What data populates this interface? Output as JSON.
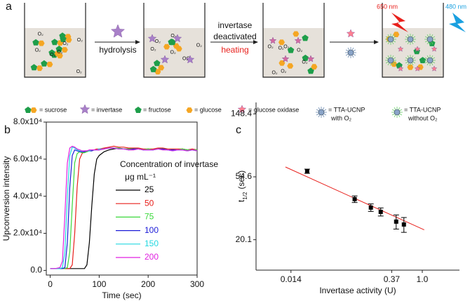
{
  "schematic": {
    "panel": "a",
    "o2": "O₂",
    "step1": "hydrolysis",
    "step2": [
      "invertase",
      "deactivated"
    ],
    "step2b": "heating",
    "red_light": "650 nm",
    "blue_light": "480 nm",
    "legend": [
      "= sucrose",
      "= invertase",
      "= fructose",
      "= glucose",
      "= glucose oxidase"
    ],
    "ucnp_with": [
      "= TTA-UCNP",
      "with O₂"
    ],
    "ucnp_without": [
      "= TTA-UCNP",
      "without O₂"
    ]
  },
  "chart_data": [
    {
      "type": "line",
      "panel": "b",
      "xlabel": "Time (sec)",
      "ylabel": "Upconversion intensity",
      "legend_title": [
        "Concentration of invertase",
        "μg mL⁻¹"
      ],
      "x": [
        0,
        10,
        20,
        25,
        30,
        35,
        40,
        45,
        50,
        55,
        60,
        65,
        70,
        75,
        80,
        85,
        90,
        95,
        100,
        110,
        120,
        130,
        140,
        150,
        160,
        170,
        180,
        190,
        200,
        210,
        220,
        230,
        240,
        250,
        260,
        270,
        280,
        290,
        300
      ],
      "xlim": [
        -8,
        300
      ],
      "xticks": [
        0,
        100,
        200,
        300
      ],
      "ylim": [
        -2500,
        80000
      ],
      "yticks": [
        {
          "value": 0,
          "label": "0.0"
        },
        {
          "value": 20000,
          "label": "2.0x10⁴"
        },
        {
          "value": 40000,
          "label": "4.0x10⁴"
        },
        {
          "value": 60000,
          "label": "6.0x10⁴"
        },
        {
          "value": 80000,
          "label": "8.0x10⁴"
        }
      ],
      "series": [
        {
          "name": "25",
          "color": "#000000",
          "values": [
            1000,
            1000,
            1000,
            1000,
            1000,
            1000,
            1000,
            1000,
            1000,
            1000,
            1000,
            1000,
            1000,
            3000,
            15000,
            35000,
            52000,
            60000,
            62000,
            64000,
            65000,
            65500,
            66000,
            65500,
            65500,
            65500,
            65500,
            65000,
            65500,
            65000,
            65500,
            65500,
            65000,
            65000,
            65000,
            65500,
            65000,
            65000,
            65000
          ]
        },
        {
          "name": "50",
          "color": "#e8201c",
          "values": [
            1000,
            1000,
            1000,
            1000,
            1000,
            1000,
            1000,
            3000,
            20000,
            45000,
            60000,
            63000,
            64000,
            64500,
            64500,
            65000,
            65000,
            65500,
            65500,
            66000,
            66500,
            67000,
            66500,
            66500,
            66000,
            66000,
            66000,
            65500,
            65500,
            65500,
            66000,
            66000,
            65500,
            65500,
            65500,
            65500,
            65000,
            65500,
            65000
          ]
        },
        {
          "name": "75",
          "color": "#3ad83a",
          "values": [
            1000,
            1000,
            1000,
            1000,
            1000,
            1500,
            10000,
            35000,
            58000,
            63000,
            64000,
            63500,
            63500,
            64000,
            64500,
            64500,
            65000,
            65000,
            65000,
            65500,
            66000,
            66000,
            66000,
            65500,
            65500,
            65500,
            65500,
            65000,
            65500,
            65000,
            65500,
            65500,
            65000,
            65000,
            65000,
            65500,
            65000,
            65000,
            65000
          ]
        },
        {
          "name": "100",
          "color": "#1c1cd8",
          "values": [
            1000,
            1000,
            1000,
            1000,
            1500,
            15000,
            45000,
            62000,
            65000,
            64500,
            64000,
            64000,
            64000,
            64500,
            64500,
            64500,
            65000,
            65000,
            65000,
            65500,
            66000,
            66000,
            65500,
            65500,
            65000,
            65500,
            65500,
            65000,
            65000,
            65000,
            65500,
            65500,
            65000,
            65000,
            65000,
            65000,
            64500,
            65000,
            64500
          ]
        },
        {
          "name": "150",
          "color": "#22d8e0",
          "values": [
            1000,
            1000,
            1000,
            1500,
            10000,
            40000,
            62000,
            66500,
            66000,
            65000,
            64500,
            64500,
            64500,
            64500,
            64500,
            65000,
            65000,
            65000,
            65500,
            65500,
            66000,
            66000,
            65500,
            65500,
            65000,
            65000,
            65500,
            65000,
            65000,
            65000,
            65500,
            65000,
            65000,
            64500,
            65000,
            65000,
            64500,
            65000,
            64500
          ]
        },
        {
          "name": "200",
          "color": "#e020e0",
          "values": [
            1000,
            1000,
            1500,
            5000,
            30000,
            58000,
            66000,
            67000,
            66500,
            65500,
            65000,
            64500,
            64500,
            64500,
            65000,
            65000,
            65000,
            65000,
            65000,
            65500,
            66000,
            66000,
            65500,
            65500,
            65000,
            65000,
            65500,
            65000,
            65000,
            65000,
            65500,
            65000,
            65000,
            64500,
            65000,
            65000,
            64500,
            65000,
            64500
          ]
        }
      ]
    },
    {
      "type": "scatter",
      "panel": "c",
      "xlabel": "Invertase activity (U)",
      "ylabel": "t",
      "ylabel_sub": "1/2",
      "ylabel_unit": "(sec)",
      "xlog": true,
      "ylog": true,
      "xlim": [
        0.0045,
        3.35
      ],
      "xticks": [
        0.014,
        0.37,
        {
          "value": 1,
          "label": "1.0"
        }
      ],
      "ylim": [
        12.4,
        178
      ],
      "yticks": [
        20.1,
        54.6,
        148.4
      ],
      "x": [
        0.0237,
        0.111,
        0.188,
        0.259,
        0.428,
        0.55
      ],
      "values": [
        59.7,
        38.3,
        33.5,
        31.3,
        26.8,
        25.6
      ],
      "errors": [
        2,
        2,
        2,
        2,
        3,
        3
      ],
      "color": "#000000",
      "fit": {
        "x": [
          0.0117,
          1.064
        ],
        "values": [
          63.8,
          23.5
        ],
        "color": "#e8201c"
      }
    }
  ]
}
